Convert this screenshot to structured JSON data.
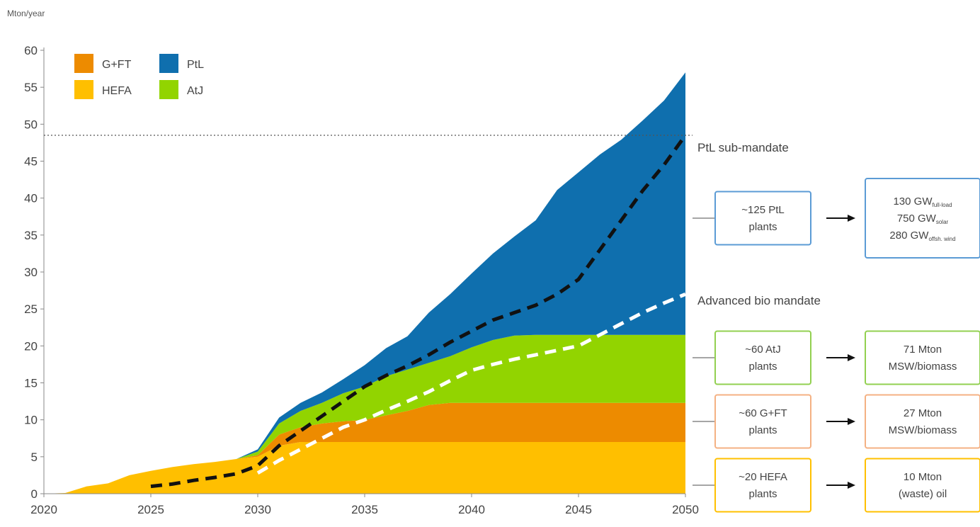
{
  "chart_data": {
    "type": "area",
    "ylabel": "Mton/year",
    "xlim": [
      2020,
      2050
    ],
    "ylim": [
      0,
      60
    ],
    "x_ticks": [
      2020,
      2025,
      2030,
      2035,
      2040,
      2045,
      2050
    ],
    "y_ticks": [
      0,
      5,
      10,
      15,
      20,
      25,
      30,
      35,
      40,
      45,
      50,
      55,
      60
    ],
    "legend": {
      "placement": "top-left",
      "entries": [
        {
          "name": "G+FT",
          "color": "#ed8b00"
        },
        {
          "name": "PtL",
          "color": "#0f6fae"
        },
        {
          "name": "HEFA",
          "color": "#ffbf00"
        },
        {
          "name": "AtJ",
          "color": "#92d400"
        }
      ]
    },
    "x": [
      2020,
      2021,
      2022,
      2023,
      2024,
      2025,
      2026,
      2027,
      2028,
      2029,
      2030,
      2031,
      2032,
      2033,
      2034,
      2035,
      2036,
      2037,
      2038,
      2039,
      2040,
      2041,
      2042,
      2043,
      2044,
      2045,
      2046,
      2047,
      2048,
      2049,
      2050
    ],
    "series": [
      {
        "name": "HEFA",
        "color": "#ffbf00",
        "values": [
          0,
          0.1,
          1,
          1.4,
          2.5,
          3.1,
          3.6,
          4.0,
          4.3,
          4.7,
          5.0,
          6.5,
          7.0,
          7.0,
          7.0,
          7.0,
          7.0,
          7.0,
          7.0,
          7.0,
          7.0,
          7.0,
          7.0,
          7.0,
          7.0,
          7.0,
          7.0,
          7.0,
          7.0,
          7.0,
          7.0
        ]
      },
      {
        "name": "G+FT",
        "color": "#ed8b00",
        "values": [
          0,
          0,
          0,
          0,
          0,
          0,
          0,
          0,
          0,
          0,
          0.2,
          1.5,
          2.0,
          2.5,
          2.8,
          3.0,
          3.6,
          4.2,
          5.0,
          5.3,
          5.3,
          5.3,
          5.3,
          5.3,
          5.3,
          5.3,
          5.3,
          5.3,
          5.3,
          5.3,
          5.3
        ]
      },
      {
        "name": "AtJ",
        "color": "#92d400",
        "values": [
          0,
          0,
          0,
          0,
          0,
          0,
          0,
          0,
          0,
          0,
          0.5,
          1.5,
          2.2,
          2.8,
          3.8,
          4.5,
          5.3,
          5.6,
          5.7,
          6.3,
          7.5,
          8.5,
          9.1,
          9.2,
          9.2,
          9.2,
          9.2,
          9.2,
          9.2,
          9.2,
          9.2
        ]
      },
      {
        "name": "PtL",
        "color": "#0f6fae",
        "values": [
          0,
          0,
          0,
          0,
          0,
          0,
          0,
          0,
          0,
          0,
          0.3,
          0.8,
          1.1,
          1.4,
          1.9,
          2.9,
          3.8,
          4.5,
          6.8,
          8.4,
          10.0,
          11.7,
          13.4,
          15.5,
          19.6,
          22.0,
          24.4,
          26.4,
          29.0,
          31.7,
          35.5
        ]
      }
    ],
    "mandate_lines": [
      {
        "name": "PtL sub-mandate",
        "color": "#111111",
        "x": [
          2025,
          2026,
          2027,
          2028,
          2029,
          2030,
          2031,
          2032,
          2033,
          2034,
          2035,
          2036,
          2037,
          2038,
          2039,
          2040,
          2041,
          2042,
          2043,
          2044,
          2045,
          2046,
          2047,
          2048,
          2049,
          2050
        ],
        "values": [
          1.0,
          1.3,
          1.8,
          2.2,
          2.7,
          3.8,
          6.5,
          8.5,
          10.5,
          12.5,
          14.5,
          16.0,
          17.3,
          18.8,
          20.5,
          22.0,
          23.5,
          24.5,
          25.5,
          27.0,
          29.0,
          33.0,
          37.0,
          41.0,
          44.5,
          48.5
        ]
      },
      {
        "name": "Advanced bio mandate",
        "color": "#ffffff",
        "x": [
          2030,
          2031,
          2032,
          2033,
          2034,
          2035,
          2036,
          2037,
          2038,
          2039,
          2040,
          2041,
          2042,
          2043,
          2044,
          2045,
          2046,
          2047,
          2048,
          2049,
          2050
        ],
        "values": [
          2.8,
          4.5,
          6.0,
          7.5,
          9.0,
          10.0,
          11.3,
          12.5,
          13.8,
          15.3,
          16.7,
          17.5,
          18.2,
          18.8,
          19.4,
          20.0,
          21.5,
          23.0,
          24.5,
          25.8,
          27.0
        ]
      }
    ],
    "reference_line": {
      "y": 48.5,
      "style": "dotted"
    },
    "annotations": {
      "ptl_label": "PtL sub-mandate",
      "bio_label": "Advanced bio mandate"
    },
    "boxes": [
      {
        "id": "ptl",
        "color": "#5b9bd5",
        "left_lines": [
          "~125 PtL",
          "plants"
        ],
        "right_lines": [
          {
            "main": "130 GW",
            "sub": "full-load"
          },
          {
            "main": "750 GW",
            "sub": "solar"
          },
          {
            "main": "280 GW",
            "sub": "offsh. wind"
          }
        ]
      },
      {
        "id": "atj",
        "color": "#92d050",
        "left_lines": [
          "~60 AtJ",
          "plants"
        ],
        "right_lines": [
          {
            "main": "71 Mton"
          },
          {
            "main": "MSW/biomass"
          }
        ]
      },
      {
        "id": "gft",
        "color": "#f4b183",
        "left_lines": [
          "~60 G+FT",
          "plants"
        ],
        "right_lines": [
          {
            "main": "27 Mton"
          },
          {
            "main": "MSW/biomass"
          }
        ]
      },
      {
        "id": "hefa",
        "color": "#ffc000",
        "left_lines": [
          "~20 HEFA",
          "plants"
        ],
        "right_lines": [
          {
            "main": "10 Mton"
          },
          {
            "main": "(waste) oil"
          }
        ]
      }
    ]
  }
}
